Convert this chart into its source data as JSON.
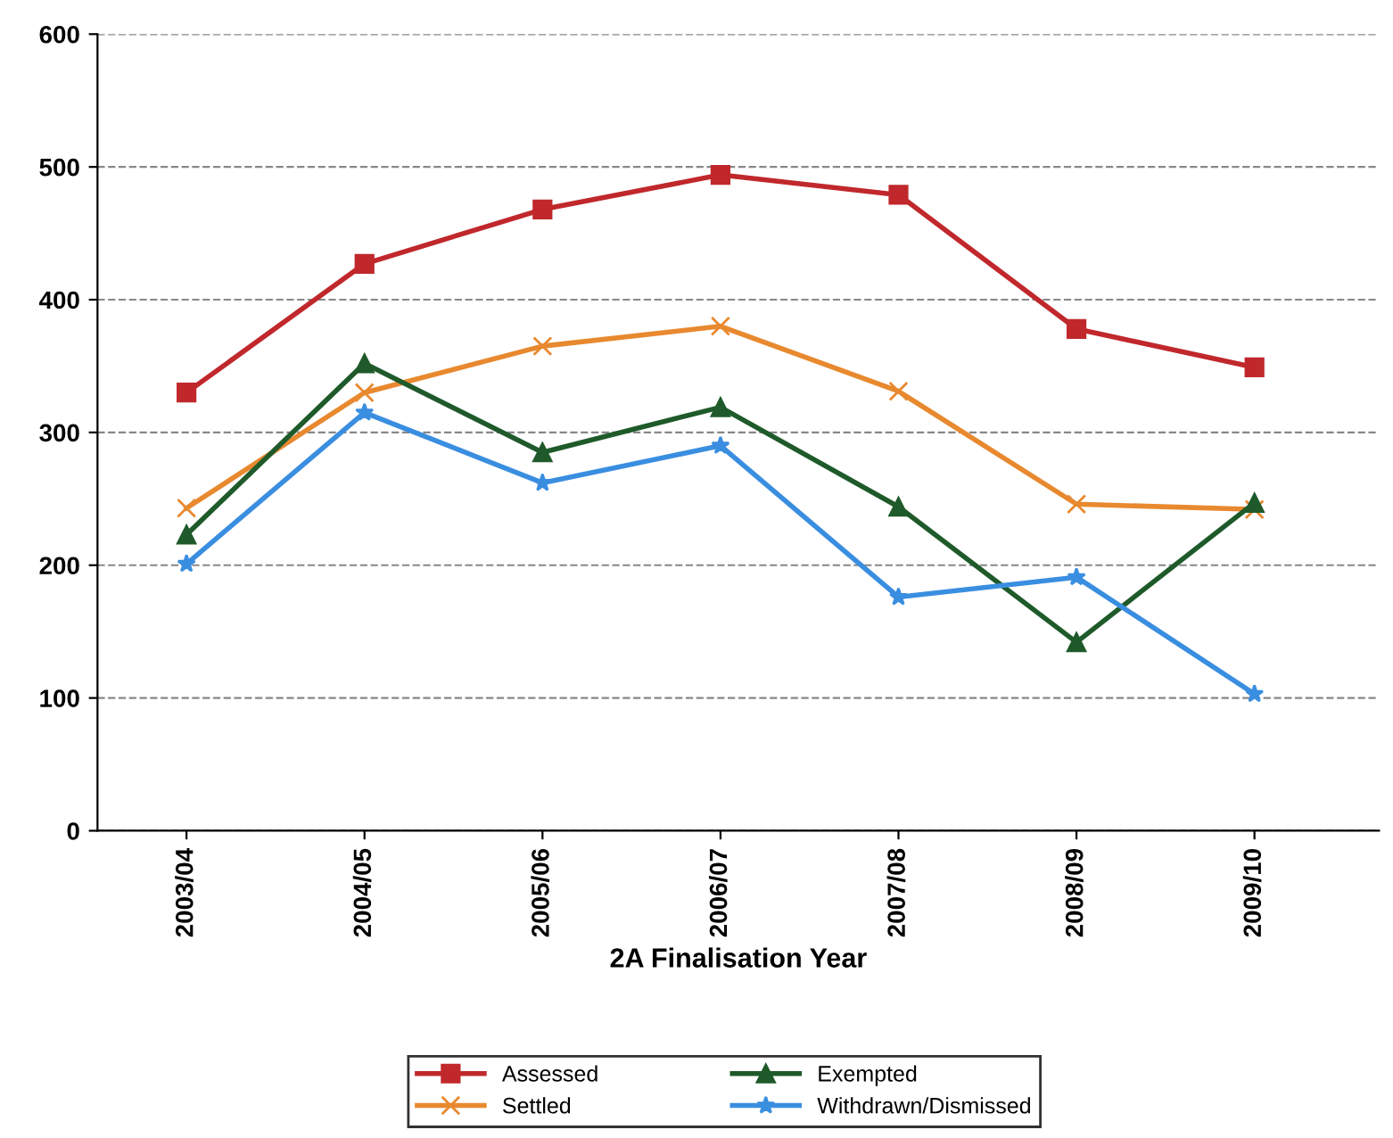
{
  "chart_data": {
    "type": "line",
    "xlabel": "2A Finalisation Year",
    "categories": [
      "2003/04",
      "2004/05",
      "2005/06",
      "2006/07",
      "2007/08",
      "2008/09",
      "2009/10"
    ],
    "series": [
      {
        "name": "Assessed",
        "color": "#c0282c",
        "marker": "square",
        "values": [
          330,
          427,
          468,
          494,
          479,
          378,
          349
        ]
      },
      {
        "name": "Settled",
        "color": "#e8892f",
        "marker": "cross",
        "values": [
          243,
          330,
          365,
          380,
          331,
          246,
          242
        ]
      },
      {
        "name": "Exempted",
        "color": "#1f5a2a",
        "marker": "triangle",
        "values": [
          223,
          352,
          285,
          319,
          244,
          142,
          247
        ]
      },
      {
        "name": "Withdrawn/Dismissed",
        "color": "#3a8ee0",
        "marker": "star",
        "values": [
          201,
          315,
          262,
          290,
          176,
          191,
          103
        ]
      }
    ],
    "ylim": [
      0,
      600
    ],
    "yticks": [
      0,
      100,
      200,
      300,
      400,
      500,
      600
    ],
    "grid": "y",
    "legend": "bottom",
    "line_style": "solid"
  }
}
